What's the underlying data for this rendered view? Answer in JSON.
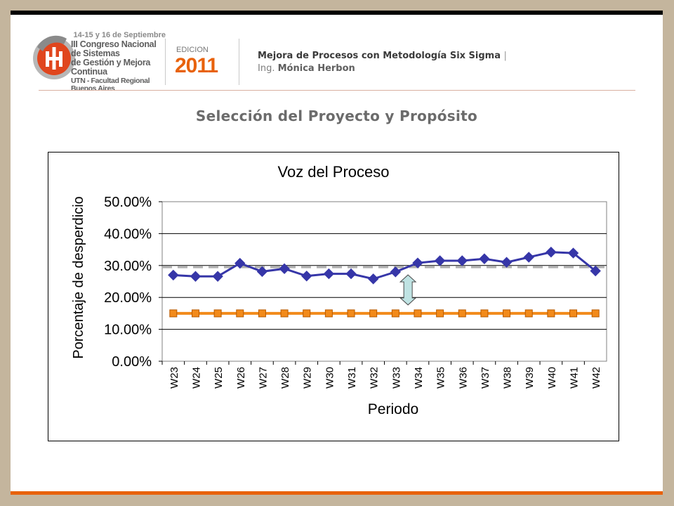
{
  "header": {
    "conference_line1": "14-15 y 16 de Septiembre",
    "conference_line2": "III Congreso Nacional de Sistemas",
    "conference_line3": "de Gestión y Mejora Continua",
    "conference_line4": "UTN - Facultad Regional Buenos Aires",
    "edition_label": "EDICION",
    "edition_year": "2011",
    "presentation_title": "Mejora de Procesos con Metodología Six Sigma",
    "separator": "|",
    "author_prefix": "Ing.",
    "author_name": "Mónica Herbon"
  },
  "slide_title": "Selección del Proyecto y Propósito",
  "colors": {
    "accent": "#e8620c",
    "background_frame": "#c4b59d",
    "process_series": "#3636a8",
    "target_series": "#f28a1a",
    "reference_line": "#b0b0b0",
    "arrow_fill": "#bfe3e3"
  },
  "chart_data": {
    "type": "line",
    "title": "Voz del Proceso",
    "xlabel": "Periodo",
    "ylabel": "Porcentaje de desperdicio",
    "ylim": [
      0,
      0.5
    ],
    "yticks": [
      "0.00%",
      "10.00%",
      "20.00%",
      "30.00%",
      "40.00%",
      "50.00%"
    ],
    "grid": "horizontal",
    "categories": [
      "W23",
      "W24",
      "W25",
      "W26",
      "W27",
      "W28",
      "W29",
      "W30",
      "W31",
      "W32",
      "W33",
      "W34",
      "W35",
      "W36",
      "W37",
      "W38",
      "W39",
      "W40",
      "W41",
      "W42"
    ],
    "series": [
      {
        "marker": "diamond",
        "values": [
          0.27,
          0.266,
          0.266,
          0.307,
          0.281,
          0.29,
          0.267,
          0.274,
          0.274,
          0.258,
          0.28,
          0.308,
          0.315,
          0.315,
          0.321,
          0.31,
          0.326,
          0.342,
          0.339,
          0.283
        ]
      },
      {
        "marker": "square",
        "values": [
          0.15,
          0.15,
          0.15,
          0.15,
          0.15,
          0.15,
          0.15,
          0.15,
          0.15,
          0.15,
          0.15,
          0.15,
          0.15,
          0.15,
          0.15,
          0.15,
          0.15,
          0.15,
          0.15,
          0.15
        ]
      }
    ],
    "reference_line": 0.295,
    "gap_arrow": {
      "category": "W34",
      "from": 0.15,
      "to": 0.295
    }
  }
}
